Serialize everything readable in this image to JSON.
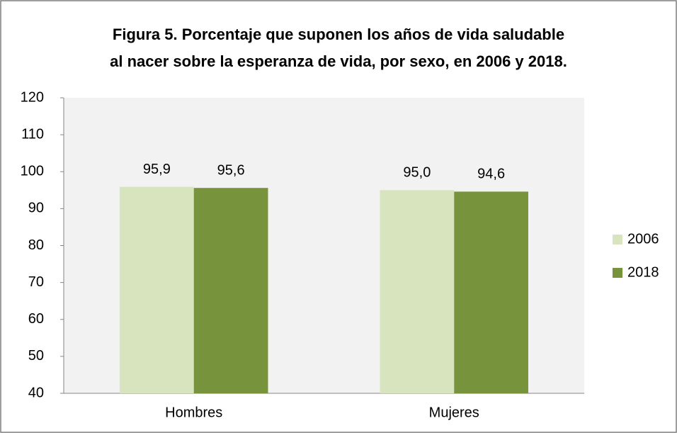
{
  "chart_data": {
    "type": "bar",
    "title": [
      "Figura 5. Porcentaje que suponen los años de vida saludable",
      "al nacer sobre la esperanza de vida, por sexo, en 2006 y 2018."
    ],
    "categories": [
      "Hombres",
      "Mujeres"
    ],
    "series": [
      {
        "name": "2006",
        "color": "#d7e4bd",
        "values": [
          95.9,
          95.0
        ],
        "value_labels": [
          "95,9",
          "95,0"
        ]
      },
      {
        "name": "2018",
        "color": "#77933c",
        "values": [
          95.6,
          94.6
        ],
        "value_labels": [
          "95,6",
          "94,6"
        ]
      }
    ],
    "ylim": [
      40,
      120
    ],
    "yticks": [
      40,
      50,
      60,
      70,
      80,
      90,
      100,
      110,
      120
    ],
    "grid": false,
    "legend": "right"
  }
}
